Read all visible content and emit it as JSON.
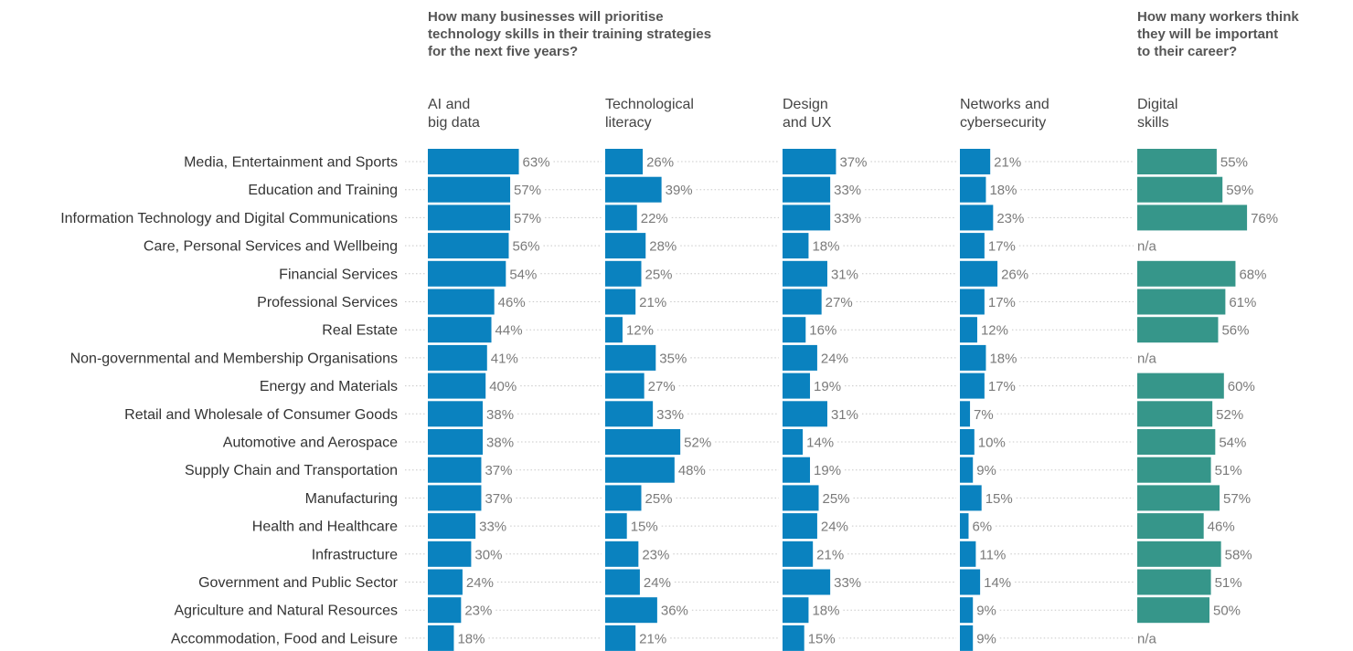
{
  "headers": {
    "business": "How many businesses will prioritise\ntechnology skills in their training strategies\nfor the next five years?",
    "workers": "How many workers think\nthey will be important\nto their career?"
  },
  "colors": {
    "business": "#0a82bf",
    "workers": "#36968a",
    "leader": "#c8c8c8"
  },
  "chart_data": {
    "type": "bar",
    "orientation": "horizontal",
    "categories": [
      "Media, Entertainment and Sports",
      "Education and Training",
      "Information Technology and Digital Communications",
      "Care, Personal Services and Wellbeing",
      "Financial Services",
      "Professional Services",
      "Real Estate",
      "Non-governmental and Membership Organisations",
      "Energy and Materials",
      "Retail and Wholesale of Consumer Goods",
      "Automotive and Aerospace",
      "Supply Chain and Transportation",
      "Manufacturing",
      "Health and Healthcare",
      "Infrastructure",
      "Government and Public Sector",
      "Agriculture and Natural Resources",
      "Accommodation, Food and Leisure"
    ],
    "series": [
      {
        "name": "AI and\nbig data",
        "group": "business",
        "values": [
          63,
          57,
          57,
          56,
          54,
          46,
          44,
          41,
          40,
          38,
          38,
          37,
          37,
          33,
          30,
          24,
          23,
          18
        ]
      },
      {
        "name": "Technological\nliteracy",
        "group": "business",
        "values": [
          26,
          39,
          22,
          28,
          25,
          21,
          12,
          35,
          27,
          33,
          52,
          48,
          25,
          15,
          23,
          24,
          36,
          21
        ]
      },
      {
        "name": "Design\nand UX",
        "group": "business",
        "values": [
          37,
          33,
          33,
          18,
          31,
          27,
          16,
          24,
          19,
          31,
          14,
          19,
          25,
          24,
          21,
          33,
          18,
          15
        ]
      },
      {
        "name": "Networks and\ncybersecurity",
        "group": "business",
        "values": [
          21,
          18,
          23,
          17,
          26,
          17,
          12,
          18,
          17,
          7,
          10,
          9,
          15,
          6,
          11,
          14,
          9,
          9
        ]
      },
      {
        "name": "Digital\nskills",
        "group": "workers",
        "values": [
          55,
          59,
          76,
          null,
          68,
          61,
          56,
          null,
          60,
          52,
          54,
          51,
          57,
          46,
          58,
          51,
          50,
          null
        ]
      }
    ],
    "missing_label": "n/a",
    "value_suffix": "%"
  }
}
